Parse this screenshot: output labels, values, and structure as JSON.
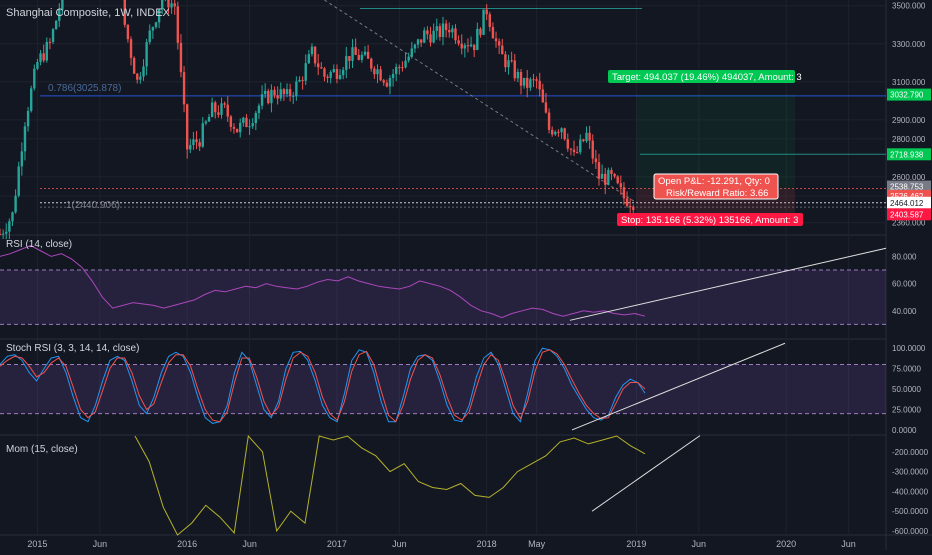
{
  "header": {
    "symbol": "Shanghai Composite",
    "interval": "1W",
    "exchange": "INDEX"
  },
  "chart_data": [
    {
      "type": "candlestick",
      "title": "Shanghai Composite, 1W, INDEX",
      "ylim": [
        2300,
        3530
      ],
      "y_ticks": [
        "3500.000",
        "3300.000",
        "3100.000",
        "2900.000",
        "2800.000",
        "2600.000",
        "2500.000",
        "2360.000"
      ],
      "x_ticks": [
        "2015",
        "Jun",
        "2016",
        "Jun",
        "2017",
        "Jun",
        "2018",
        "May",
        "2019",
        "Jun",
        "2020",
        "Jun"
      ],
      "x_range": [
        "2014-10",
        "2020-09"
      ],
      "price_labels": [
        {
          "text": "3032.790",
          "color": "#00c853"
        },
        {
          "text": "2718.938",
          "color": "#00c853"
        },
        {
          "text": "2538.753",
          "color": "#787b86"
        },
        {
          "text": "2526.462",
          "color": "#ef5350"
        },
        {
          "text": "2464.012",
          "color": "#ffffff"
        },
        {
          "text": "2403.587",
          "color": "#ff1744"
        }
      ],
      "fib_labels": [
        "0.786(3025.878)",
        "1(2440.906)"
      ],
      "horizontal_levels": [
        3485,
        3026,
        2719,
        2539,
        2464,
        2441
      ],
      "trendline_from": [
        "2016-12",
        3530
      ],
      "trendline_to": [
        "2019-01",
        2464
      ],
      "weekly_close": [
        {
          "x": "2014-10",
          "c": 2300
        },
        {
          "x": "2014-11",
          "c": 2400
        },
        {
          "x": "2014-12",
          "c": 2900
        },
        {
          "x": "2015-01",
          "c": 3200
        },
        {
          "x": "2015-02",
          "c": 3300
        },
        {
          "x": "2015-03",
          "c": 3550
        },
        {
          "x": "2015-04",
          "c": 4300
        },
        {
          "x": "2015-05",
          "c": 4550
        },
        {
          "x": "2015-06",
          "c": 5100
        },
        {
          "x": "2015-07",
          "c": 3900
        },
        {
          "x": "2015-08",
          "c": 3400
        },
        {
          "x": "2015-09",
          "c": 3100
        },
        {
          "x": "2015-10",
          "c": 3350
        },
        {
          "x": "2015-11",
          "c": 3550
        },
        {
          "x": "2015-12",
          "c": 3500
        },
        {
          "x": "2016-01",
          "c": 2750
        },
        {
          "x": "2016-02",
          "c": 2800
        },
        {
          "x": "2016-03",
          "c": 2950
        },
        {
          "x": "2016-04",
          "c": 2950
        },
        {
          "x": "2016-05",
          "c": 2850
        },
        {
          "x": "2016-06",
          "c": 2900
        },
        {
          "x": "2016-07",
          "c": 3000
        },
        {
          "x": "2016-08",
          "c": 3050
        },
        {
          "x": "2016-09",
          "c": 3020
        },
        {
          "x": "2016-10",
          "c": 3100
        },
        {
          "x": "2016-11",
          "c": 3250
        },
        {
          "x": "2016-12",
          "c": 3130
        },
        {
          "x": "2017-01",
          "c": 3160
        },
        {
          "x": "2017-02",
          "c": 3240
        },
        {
          "x": "2017-03",
          "c": 3230
        },
        {
          "x": "2017-04",
          "c": 3180
        },
        {
          "x": "2017-05",
          "c": 3110
        },
        {
          "x": "2017-06",
          "c": 3180
        },
        {
          "x": "2017-07",
          "c": 3250
        },
        {
          "x": "2017-08",
          "c": 3350
        },
        {
          "x": "2017-09",
          "c": 3350
        },
        {
          "x": "2017-10",
          "c": 3390
        },
        {
          "x": "2017-11",
          "c": 3320
        },
        {
          "x": "2017-12",
          "c": 3300
        },
        {
          "x": "2018-01",
          "c": 3480
        },
        {
          "x": "2018-02",
          "c": 3250
        },
        {
          "x": "2018-03",
          "c": 3170
        },
        {
          "x": "2018-04",
          "c": 3080
        },
        {
          "x": "2018-05",
          "c": 3100
        },
        {
          "x": "2018-06",
          "c": 2850
        },
        {
          "x": "2018-07",
          "c": 2870
        },
        {
          "x": "2018-08",
          "c": 2700
        },
        {
          "x": "2018-09",
          "c": 2820
        },
        {
          "x": "2018-10",
          "c": 2600
        },
        {
          "x": "2018-11",
          "c": 2590
        },
        {
          "x": "2018-12",
          "c": 2490
        },
        {
          "x": "2019-01",
          "c": 2464
        }
      ],
      "long_position": {
        "target_label": "Target: 494.037 (19.46%) 494037, Amount: 3",
        "stop_label": "Stop: 135.166 (5.32%) 135166, Amount: 3",
        "pnl_label": "Open P&L: -12.291, Qty: 0",
        "rr_label": "Risk/Reward Ratio: 3.66",
        "entry": 2538.753,
        "target": 3032.79,
        "stop": 2403.587
      }
    },
    {
      "type": "line",
      "title": "RSI (14, close)",
      "ylim": [
        20,
        95
      ],
      "y_ticks": [
        "80.000",
        "60.000",
        "40.000"
      ],
      "band": [
        70,
        30
      ],
      "series": [
        {
          "name": "RSI",
          "color": "#ab47bc",
          "values": [
            80,
            82,
            85,
            88,
            84,
            80,
            82,
            78,
            72,
            62,
            50,
            42,
            44,
            46,
            45,
            44,
            42,
            44,
            46,
            48,
            52,
            55,
            54,
            56,
            58,
            57,
            60,
            58,
            57,
            56,
            58,
            61,
            63,
            62,
            65,
            62,
            60,
            58,
            57,
            56,
            58,
            62,
            60,
            58,
            55,
            50,
            44,
            40,
            38,
            35,
            38,
            40,
            42,
            41,
            38,
            36,
            38,
            40,
            39,
            40,
            38,
            37,
            38,
            36
          ]
        }
      ]
    },
    {
      "type": "line",
      "title": "Stoch RSI (3, 3, 14, 14, close)",
      "ylim": [
        -5,
        110
      ],
      "y_ticks": [
        "100.0000",
        "75.0000",
        "50.0000",
        "25.0000",
        "0.0000"
      ],
      "band": [
        80,
        20
      ],
      "series": [
        {
          "name": "K",
          "color": "#2196f3",
          "values": [
            80,
            90,
            92,
            85,
            70,
            60,
            75,
            88,
            90,
            70,
            40,
            15,
            10,
            30,
            60,
            85,
            90,
            85,
            60,
            30,
            20,
            40,
            70,
            90,
            95,
            90,
            70,
            40,
            15,
            8,
            10,
            30,
            70,
            95,
            85,
            55,
            25,
            15,
            35,
            75,
            95,
            96,
            85,
            60,
            30,
            15,
            10,
            45,
            85,
            98,
            95,
            70,
            35,
            10,
            10,
            40,
            75,
            90,
            92,
            85,
            60,
            30,
            12,
            10,
            30,
            65,
            88,
            95,
            80,
            50,
            20,
            10,
            45,
            85,
            100,
            98,
            90,
            75,
            55,
            40,
            25,
            15,
            12,
            18,
            40,
            55,
            62,
            58,
            45
          ]
        },
        {
          "name": "D",
          "color": "#ef5350",
          "values": [
            78,
            85,
            90,
            88,
            78,
            65,
            70,
            82,
            88,
            78,
            52,
            25,
            15,
            22,
            48,
            75,
            88,
            88,
            70,
            42,
            25,
            32,
            58,
            82,
            92,
            92,
            78,
            50,
            25,
            12,
            10,
            22,
            58,
            88,
            88,
            65,
            35,
            18,
            28,
            62,
            88,
            95,
            90,
            70,
            40,
            20,
            12,
            35,
            72,
            92,
            96,
            80,
            48,
            18,
            10,
            30,
            62,
            85,
            92,
            88,
            68,
            40,
            18,
            12,
            22,
            52,
            80,
            92,
            85,
            60,
            30,
            14,
            35,
            72,
            95,
            98,
            93,
            80,
            62,
            45,
            30,
            20,
            14,
            15,
            32,
            50,
            58,
            58,
            50
          ]
        }
      ]
    },
    {
      "type": "line",
      "title": "Mom (15, close)",
      "ylim": [
        -620,
        -120
      ],
      "y_ticks": [
        "-200.0000",
        "-300.0000",
        "-400.0000",
        "-500.0000",
        "-600.0000"
      ],
      "series": [
        {
          "name": "Mom",
          "color": "#b5b22b",
          "values": [
            -120,
            -250,
            -480,
            -620,
            -560,
            -470,
            -530,
            -610,
            -120,
            -200,
            -600,
            -500,
            -560,
            -120,
            -140,
            -120,
            -180,
            -220,
            -300,
            -260,
            -350,
            -380,
            -390,
            -360,
            -420,
            -430,
            -380,
            -300,
            -260,
            -220,
            -150,
            -130,
            -160,
            -140,
            -120,
            -170,
            -210
          ]
        }
      ]
    }
  ]
}
